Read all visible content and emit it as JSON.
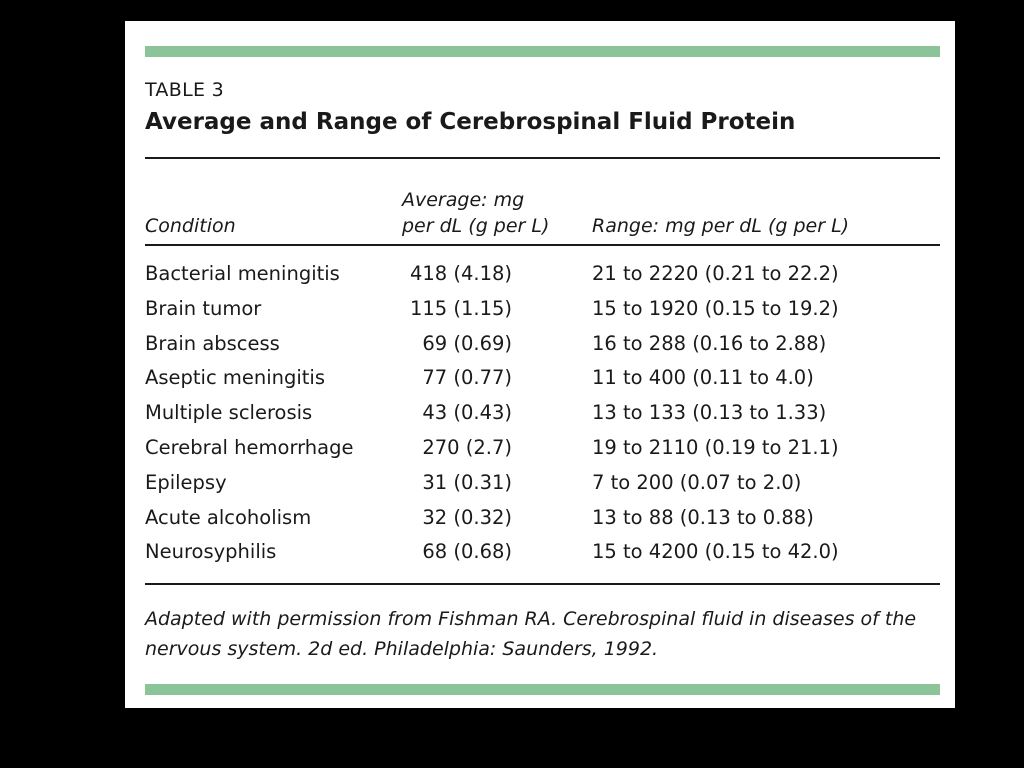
{
  "table": {
    "label": "TABLE 3",
    "title": "Average and Range of Cerebrospinal Fluid Protein",
    "headers": {
      "condition": "Condition",
      "average_line1": "Average: mg",
      "average_line2": "per dL (g per L)",
      "range": "Range: mg per dL (g per L)"
    },
    "rows": [
      {
        "condition": "Bacterial meningitis",
        "average": "418 (4.18)",
        "range": "21 to 2220 (0.21 to 22.2)"
      },
      {
        "condition": "Brain tumor",
        "average": "115 (1.15)",
        "range": "15 to 1920 (0.15 to 19.2)"
      },
      {
        "condition": "Brain abscess",
        "average": "69 (0.69)",
        "range": "16 to 288 (0.16 to 2.88)"
      },
      {
        "condition": "Aseptic meningitis",
        "average": "77 (0.77)",
        "range": "11 to 400 (0.11 to 4.0)"
      },
      {
        "condition": "Multiple sclerosis",
        "average": "43 (0.43)",
        "range": "13 to 133 (0.13 to 1.33)"
      },
      {
        "condition": "Cerebral hemorrhage",
        "average": "270 (2.7)",
        "range": "19 to 2110 (0.19 to 21.1)"
      },
      {
        "condition": "Epilepsy",
        "average": "31 (0.31)",
        "range": "7 to 200 (0.07 to 2.0)"
      },
      {
        "condition": "Acute alcoholism",
        "average": "32 (0.32)",
        "range": "13 to 88 (0.13 to 0.88)"
      },
      {
        "condition": "Neurosyphilis",
        "average": "68 (0.68)",
        "range": "15 to 4200 (0.15 to 42.0)"
      }
    ],
    "footnote_line1": "Adapted with permission from Fishman RA. Cerebrospinal fluid in diseases of the",
    "footnote_line2": "nervous system. 2d ed. Philadelphia: Saunders, 1992."
  },
  "colors": {
    "accent_bar": "#8cc49a",
    "background": "#000000",
    "panel": "#ffffff"
  }
}
